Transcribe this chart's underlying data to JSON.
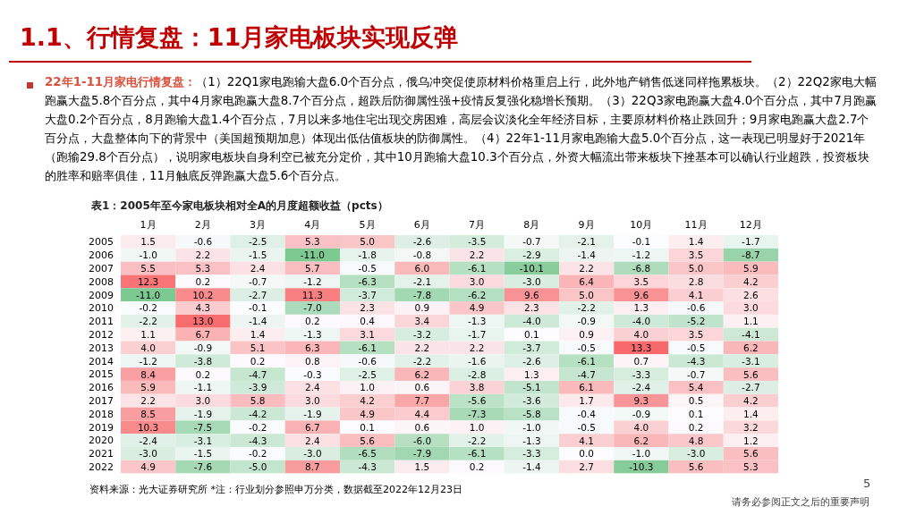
{
  "chart_data": {
    "type": "heatmap",
    "cell_labels": [
      [
        "1.5",
        "-0.6",
        "-2.5",
        "5.3",
        "5.0",
        "-2.6",
        "-3.5",
        "-0.7",
        "-2.1",
        "-0.1",
        "1.4",
        "-1.7"
      ],
      [
        "-1.0",
        "2.2",
        "-1.5",
        "-11.0",
        "-1.8",
        "-0.8",
        "2.2",
        "-2.9",
        "-1.4",
        "-1.2",
        "3.5",
        "-8.7"
      ],
      [
        "5.5",
        "5.3",
        "2.4",
        "5.7",
        "-0.5",
        "6.0",
        "-6.1",
        "-10.1",
        "2.2",
        "-6.8",
        "5.0",
        "5.9"
      ],
      [
        "12.3",
        "0.2",
        "-0.7",
        "-1.2",
        "-6.3",
        "-2.1",
        "3.0",
        "-3.0",
        "6.4",
        "3.5",
        "2.8",
        "4.2"
      ],
      [
        "-11.0",
        "10.2",
        "-2.7",
        "11.3",
        "-3.7",
        "-7.8",
        "-6.2",
        "9.6",
        "5.0",
        "9.6",
        "4.1",
        "2.6"
      ],
      [
        "-0.2",
        "4.3",
        "-0.1",
        "-7.0",
        "2.3",
        "0.9",
        "4.9",
        "2.3",
        "-2.2",
        "1.3",
        "-0.6",
        "3.0"
      ],
      [
        "-2.2",
        "13.0",
        "-1.4",
        "0.2",
        "0.4",
        "3.4",
        "-1.3",
        "-4.0",
        "-0.9",
        "-4.0",
        "-5.2",
        "1.1"
      ],
      [
        "1.1",
        "6.7",
        "1.4",
        "-1.3",
        "3.1",
        "-3.2",
        "-1.7",
        "0.1",
        "0.9",
        "4.0",
        "3.5",
        "-4.1"
      ],
      [
        "4.0",
        "-0.9",
        "5.1",
        "6.3",
        "-6.1",
        "2.2",
        "2.2",
        "-3.7",
        "-0.5",
        "13.3",
        "-0.5",
        "6.2"
      ],
      [
        "-1.2",
        "-3.8",
        "0.2",
        "0.8",
        "-0.6",
        "-2.2",
        "-1.6",
        "-2.6",
        "-6.1",
        "0.7",
        "-4.3",
        "-3.1"
      ],
      [
        "8.4",
        "0.2",
        "-4.7",
        "-0.3",
        "-2.5",
        "6.2",
        "-2.8",
        "1.3",
        "-4.7",
        "-3.3",
        "-0.7",
        "5.6"
      ],
      [
        "5.9",
        "-1.1",
        "-3.9",
        "2.4",
        "1.0",
        "0.6",
        "3.8",
        "-5.1",
        "6.1",
        "-2.4",
        "5.4",
        "-2.7"
      ],
      [
        "2.2",
        "3.0",
        "5.8",
        "3.0",
        "4.2",
        "7.7",
        "-5.6",
        "-3.6",
        "1.7",
        "9.3",
        "0.5",
        "4.2"
      ],
      [
        "8.5",
        "-1.9",
        "-4.2",
        "-1.9",
        "4.9",
        "4.4",
        "-7.3",
        "-5.8",
        "-0.4",
        "-0.9",
        "0.1",
        "1.4"
      ],
      [
        "10.3",
        "-7.5",
        "-0.2",
        "6.7",
        "0.1",
        "0.6",
        "1.0",
        "-1.0",
        "-0.5",
        "4.0",
        "0.2",
        "3.2"
      ],
      [
        "-2.4",
        "-3.1",
        "-4.3",
        "2.4",
        "5.6",
        "-6.0",
        "-2.2",
        "-1.3",
        "4.1",
        "6.2",
        "4.8",
        "1.2"
      ],
      [
        "-3.0",
        "-1.5",
        "-0.2",
        "-3.0",
        "-6.5",
        "-7.9",
        "-6.1",
        "-3.3",
        "0.0",
        "-1.0",
        "-3.0",
        "5.6"
      ],
      [
        "4.9",
        "-7.6",
        "-5.0",
        "8.7",
        "-4.3",
        "1.5",
        "0.2",
        "-1.4",
        "2.7",
        "-10.3",
        "5.6",
        "5.3"
      ]
    ],
    "title": "1.1、行情复盘：11月家电板块实现反弹",
    "subtitle": "表1：2005年至今家电板块相对全A的月度超额收益（pcts）",
    "annotations": [
      "22年1-11月家电行情复盘：",
      "（1）22Q1家电跑输大盘6.0个百分点，俄乌冲突促使原材料价格重启上行，此外地产销售低迷同样拖累板块。（2）22Q2家电大幅跑赢大盘5.8个百分点，其中4月家电跑赢大盘8.7个百分点，超跌后防御属性强+疫情反复强化稳增长预期。（3）22Q3家电跑赢大盘4.0个百分点，其中7月跑赢大盘0.2个百分点，8月跑输大盘1.4个百分点，7月以来多地住宅出现交房困难，高层会议淡化全年经济目标，主要原材料价格止跌回升；9月家电跑赢大盘2.7个百分点，大盘整体向下的背景中（美国超预期加息）体现出低估值板块的防御属性。（4）22年1-11月家电跑输大盘5.0个百分点，这一表现已明显好于2021年（跑输29.8个百分点），说明家电板块自身利空已被充分定价，其中10月跑输大盘10.3个百分点，外资大幅流出带来板块下挫基本可以确认行业超跌，投资板块的胜率和赔率俱佳，11月触底反弹跑赢大盘5.6个百分点。",
      "资料来源：光大证券研究所 *注：行业划分参照申万分类，数据截至2022年12月23日",
      "5",
      "请务必参阅正文之后的重要声明"
    ],
    "categories": [
      "1月",
      "2月",
      "3月",
      "4月",
      "5月",
      "6月",
      "7月",
      "8月",
      "9月",
      "10月",
      "11月",
      "12月"
    ],
    "y_categories": [
      "2005",
      "2006",
      "2007",
      "2008",
      "2009",
      "2010",
      "2011",
      "2012",
      "2013",
      "2014",
      "2015",
      "2016",
      "2017",
      "2018",
      "2019",
      "2020",
      "2021",
      "2022"
    ],
    "cells": [
      [
        1.5,
        -0.6,
        -2.5,
        5.3,
        5.0,
        -2.6,
        -3.5,
        -0.7,
        -2.1,
        -0.1,
        1.4,
        -1.7
      ],
      [
        -1.0,
        2.2,
        -1.5,
        -11.0,
        -1.8,
        -0.8,
        2.2,
        -2.9,
        -1.4,
        -1.2,
        3.5,
        -8.7
      ],
      [
        5.5,
        5.3,
        2.4,
        5.7,
        -0.5,
        6.0,
        -6.1,
        -10.1,
        2.2,
        -6.8,
        5.0,
        5.9
      ],
      [
        12.3,
        0.2,
        -0.7,
        -1.2,
        -6.3,
        -2.1,
        3.0,
        -3.0,
        6.4,
        3.5,
        2.8,
        4.2
      ],
      [
        -11.0,
        10.2,
        -2.7,
        11.3,
        -3.7,
        -7.8,
        -6.2,
        9.6,
        5.0,
        9.6,
        4.1,
        2.6
      ],
      [
        -0.2,
        4.3,
        -0.1,
        -7.0,
        2.3,
        0.9,
        4.9,
        2.3,
        -2.2,
        1.3,
        -0.6,
        3.0
      ],
      [
        -2.2,
        13.0,
        -1.4,
        0.2,
        0.4,
        3.4,
        -1.3,
        -4.0,
        -0.9,
        -4.0,
        -5.2,
        1.1
      ],
      [
        1.1,
        6.7,
        1.4,
        -1.3,
        3.1,
        -3.2,
        -1.7,
        0.1,
        0.9,
        4.0,
        3.5,
        -4.1
      ],
      [
        4.0,
        -0.9,
        5.1,
        6.3,
        -6.1,
        2.2,
        2.2,
        -3.7,
        -0.5,
        13.3,
        -0.5,
        6.2
      ],
      [
        -1.2,
        -3.8,
        0.2,
        0.8,
        -0.6,
        -2.2,
        -1.6,
        -2.6,
        -6.1,
        0.7,
        -4.3,
        -3.1
      ],
      [
        8.4,
        0.2,
        -4.7,
        -0.3,
        -2.5,
        6.2,
        -2.8,
        1.3,
        -4.7,
        -3.3,
        -0.7,
        5.6
      ],
      [
        5.9,
        -1.1,
        -3.9,
        2.4,
        1.0,
        0.6,
        3.8,
        -5.1,
        6.1,
        -2.4,
        5.4,
        -2.7
      ],
      [
        2.2,
        3.0,
        5.8,
        3.0,
        4.2,
        7.7,
        -5.6,
        -3.6,
        1.7,
        9.3,
        0.5,
        4.2
      ],
      [
        8.5,
        -1.9,
        -4.2,
        -1.9,
        4.9,
        4.4,
        -7.3,
        -5.8,
        -0.4,
        -0.9,
        0.1,
        1.4
      ],
      [
        10.3,
        -7.5,
        -0.2,
        6.7,
        0.1,
        0.6,
        1.0,
        -1.0,
        -0.5,
        4.0,
        0.2,
        3.2
      ],
      [
        -2.4,
        -3.1,
        -4.3,
        2.4,
        5.6,
        -6.0,
        -2.2,
        -1.3,
        4.1,
        6.2,
        4.8,
        1.2
      ],
      [
        -3.0,
        -1.5,
        -0.2,
        -3.0,
        -6.5,
        -7.9,
        -6.1,
        -3.3,
        0.0,
        -1.0,
        -3.0,
        5.6
      ],
      [
        4.9,
        -7.6,
        -5.0,
        8.7,
        -4.3,
        1.5,
        0.2,
        -1.4,
        2.7,
        -10.3,
        5.6,
        5.3
      ]
    ]
  }
}
